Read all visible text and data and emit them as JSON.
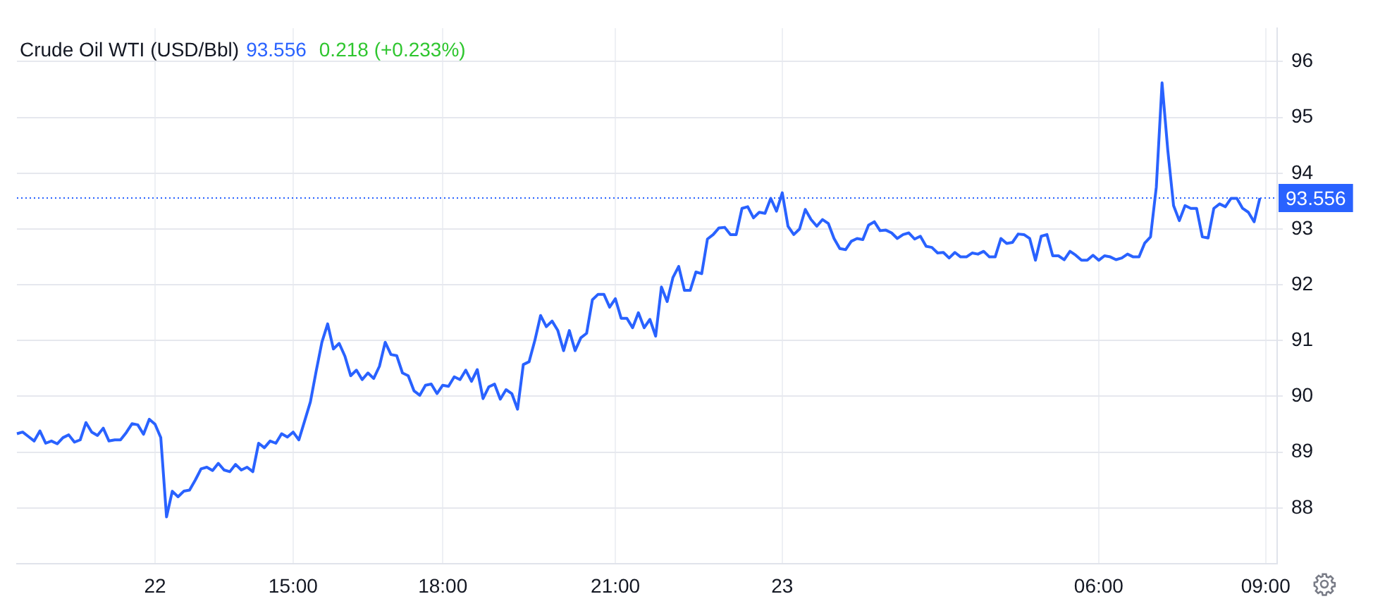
{
  "chart_data": {
    "type": "line",
    "title": "Crude Oil WTI (USD/Bbl)",
    "subtitle": "93.556",
    "annotations": [
      "0.218 (+0.233%)"
    ],
    "categories": [
      null,
      null,
      null,
      null,
      null,
      null,
      null,
      null,
      null,
      null,
      null,
      null,
      null,
      null,
      null,
      null,
      null,
      null,
      null,
      null,
      null,
      null,
      null,
      null,
      "22",
      null,
      null,
      null,
      null,
      null,
      null,
      null,
      null,
      null,
      null,
      null,
      null,
      null,
      null,
      null,
      null,
      null,
      null,
      null,
      null,
      null,
      null,
      null,
      "15:00",
      null,
      null,
      null,
      null,
      null,
      null,
      null,
      null,
      null,
      null,
      null,
      null,
      null,
      null,
      null,
      null,
      null,
      null,
      null,
      null,
      null,
      null,
      null,
      null,
      null,
      "18:00",
      null,
      null,
      null,
      null,
      null,
      null,
      null,
      null,
      null,
      null,
      null,
      null,
      null,
      null,
      null,
      null,
      null,
      null,
      null,
      null,
      null,
      null,
      null,
      null,
      null,
      null,
      null,
      null,
      null,
      "21:00",
      null,
      null,
      null,
      null,
      null,
      null,
      null,
      null,
      null,
      null,
      null,
      null,
      null,
      null,
      null,
      null,
      null,
      null,
      null,
      null,
      null,
      null,
      null,
      null,
      null,
      null,
      null,
      null,
      "23",
      null,
      null,
      null,
      null,
      null,
      null,
      null,
      null,
      null,
      null,
      null,
      null,
      null,
      null,
      null,
      null,
      null,
      null,
      null,
      null,
      null,
      null,
      null,
      null,
      null,
      null,
      null,
      null,
      null,
      null,
      null,
      null,
      null,
      null,
      null,
      null,
      null,
      null,
      null,
      null,
      null,
      null,
      null,
      null,
      null,
      null,
      null,
      null,
      null,
      null,
      null,
      null,
      null,
      null,
      "06:00",
      null,
      null,
      null,
      null,
      null,
      null,
      null,
      null,
      null,
      null,
      null,
      null,
      null,
      null,
      null,
      null,
      null,
      null,
      null,
      null,
      null,
      null,
      null,
      null,
      null,
      null,
      null,
      null,
      "09:00",
      null,
      null
    ],
    "series": [
      {
        "color": "#2962ff",
        "values": [
          89.33,
          89.36,
          89.28,
          89.2,
          89.38,
          89.16,
          89.2,
          89.15,
          89.26,
          89.31,
          89.18,
          89.22,
          89.53,
          89.36,
          89.3,
          89.43,
          89.2,
          89.22,
          89.22,
          89.35,
          89.51,
          89.49,
          89.32,
          89.59,
          89.5,
          89.26,
          87.84,
          88.3,
          88.2,
          88.3,
          88.32,
          88.5,
          88.7,
          88.73,
          88.67,
          88.8,
          88.68,
          88.65,
          88.78,
          88.68,
          88.73,
          88.65,
          89.16,
          89.08,
          89.2,
          89.16,
          89.33,
          89.27,
          89.36,
          89.22,
          89.56,
          89.9,
          90.45,
          90.97,
          91.3,
          90.85,
          90.95,
          90.72,
          90.37,
          90.47,
          90.3,
          90.42,
          90.32,
          90.54,
          90.97,
          90.75,
          90.73,
          90.42,
          90.37,
          90.1,
          90.02,
          90.2,
          90.22,
          90.05,
          90.2,
          90.18,
          90.35,
          90.3,
          90.47,
          90.27,
          90.48,
          89.96,
          90.17,
          90.22,
          89.95,
          90.12,
          90.05,
          89.77,
          90.57,
          90.62,
          91.0,
          91.45,
          91.25,
          91.35,
          91.18,
          90.82,
          91.18,
          90.82,
          91.05,
          91.13,
          91.73,
          91.83,
          91.83,
          91.6,
          91.75,
          91.4,
          91.4,
          91.23,
          91.5,
          91.23,
          91.38,
          91.08,
          91.96,
          91.7,
          92.13,
          92.33,
          91.9,
          91.9,
          92.23,
          92.2,
          92.82,
          92.9,
          93.02,
          93.03,
          92.9,
          92.9,
          93.37,
          93.4,
          93.2,
          93.3,
          93.28,
          93.55,
          93.32,
          93.65,
          93.05,
          92.9,
          93.0,
          93.35,
          93.17,
          93.05,
          93.17,
          93.1,
          92.83,
          92.65,
          92.63,
          92.78,
          92.83,
          92.81,
          93.07,
          93.13,
          92.97,
          92.98,
          92.93,
          92.83,
          92.9,
          92.93,
          92.82,
          92.87,
          92.69,
          92.67,
          92.57,
          92.58,
          92.48,
          92.58,
          92.5,
          92.5,
          92.57,
          92.55,
          92.6,
          92.5,
          92.5,
          92.83,
          92.74,
          92.76,
          92.91,
          92.9,
          92.83,
          92.44,
          92.87,
          92.9,
          92.52,
          92.52,
          92.45,
          92.6,
          92.53,
          92.44,
          92.44,
          92.53,
          92.44,
          92.52,
          92.5,
          92.45,
          92.48,
          92.55,
          92.5,
          92.5,
          92.75,
          92.86,
          93.75,
          95.62,
          94.41,
          93.42,
          93.15,
          93.42,
          93.37,
          93.37,
          92.86,
          92.84,
          93.37,
          93.45,
          93.4,
          93.55,
          93.55,
          93.37,
          93.3,
          93.13,
          93.556,
          null,
          null,
          null
        ]
      }
    ],
    "ylim": [
      87,
      96.6
    ],
    "yticks": [
      88,
      89,
      90,
      91,
      92,
      93,
      94,
      95,
      96
    ],
    "grid": true,
    "legend": false,
    "ref_lines": [
      {
        "axis": "y",
        "value": 93.556,
        "label": "93.556",
        "color": "#2962ff",
        "line_style": "dotted"
      }
    ]
  }
}
